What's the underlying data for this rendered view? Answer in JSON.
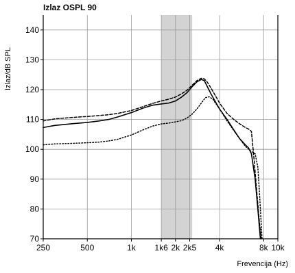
{
  "chart_data": {
    "type": "line",
    "title": "Izlaz OSPL 90",
    "ylabel": "Izlaz/dB SPL",
    "xlabel": "Frevencija (Hz)",
    "x_scale": "log",
    "xlim": [
      250,
      10000
    ],
    "ylim": [
      70,
      145
    ],
    "yticks": [
      70,
      80,
      90,
      100,
      110,
      120,
      130,
      140
    ],
    "xticks": [
      {
        "value": 250,
        "label": "250"
      },
      {
        "value": 500,
        "label": "500"
      },
      {
        "value": 1000,
        "label": "1k"
      },
      {
        "value": 1600,
        "label": "1k6"
      },
      {
        "value": 2000,
        "label": "2k"
      },
      {
        "value": 2500,
        "label": "2k5"
      },
      {
        "value": 4000,
        "label": "4k"
      },
      {
        "value": 8000,
        "label": "8k"
      },
      {
        "value": 10000,
        "label": "10k"
      }
    ],
    "grid": true,
    "shaded_band": {
      "x_from": 1600,
      "x_to": 2600,
      "color": "#d3d3d3"
    },
    "series": [
      {
        "style": "solid",
        "color": "#000000",
        "x": [
          250,
          300,
          400,
          500,
          600,
          700,
          800,
          1000,
          1200,
          1400,
          1600,
          1800,
          2000,
          2200,
          2400,
          2600,
          2800,
          3000,
          3150,
          3300,
          3500,
          4000,
          4500,
          5000,
          5500,
          6000,
          6300,
          6600,
          7000,
          7300,
          7600
        ],
        "y": [
          107.3,
          108.0,
          108.6,
          109.0,
          109.5,
          110.0,
          110.8,
          112.3,
          113.8,
          114.8,
          115.2,
          115.5,
          116.2,
          117.5,
          119.0,
          121.0,
          122.6,
          123.4,
          123.0,
          121.0,
          118.5,
          113.5,
          110.0,
          106.5,
          103.5,
          101.5,
          100.5,
          98.5,
          90.0,
          80.0,
          70.0
        ]
      },
      {
        "style": "dashed",
        "color": "#000000",
        "x": [
          250,
          300,
          400,
          500,
          600,
          700,
          800,
          1000,
          1200,
          1400,
          1600,
          1800,
          2000,
          2200,
          2400,
          2600,
          2800,
          3000,
          3150,
          3300,
          3500,
          4000,
          4500,
          5000,
          5500,
          6000,
          6300,
          6600,
          6900,
          7200,
          7500,
          7700
        ],
        "y": [
          109.5,
          110.2,
          110.7,
          111.0,
          111.3,
          111.6,
          112.0,
          113.0,
          114.3,
          115.4,
          116.2,
          116.8,
          117.5,
          118.6,
          119.8,
          121.5,
          123.0,
          123.8,
          123.6,
          122.5,
          120.5,
          115.5,
          112.0,
          110.0,
          108.5,
          107.3,
          106.8,
          106.0,
          96.0,
          85.0,
          75.0,
          70.0
        ]
      },
      {
        "style": "dotted",
        "color": "#000000",
        "x": [
          250,
          300,
          400,
          500,
          600,
          700,
          800,
          1000,
          1200,
          1400,
          1600,
          1800,
          2000,
          2200,
          2400,
          2600,
          2800,
          3000,
          3200,
          3400,
          3600,
          4000,
          4500,
          5000,
          5500,
          6000,
          6500,
          7000,
          7300,
          7500,
          7800
        ],
        "y": [
          101.5,
          101.8,
          102.0,
          102.2,
          102.4,
          102.8,
          103.3,
          104.8,
          106.5,
          107.8,
          108.5,
          108.8,
          109.2,
          109.6,
          110.5,
          111.8,
          113.5,
          115.5,
          117.3,
          117.6,
          116.8,
          113.5,
          109.5,
          106.3,
          103.5,
          101.0,
          99.5,
          98.5,
          94.0,
          85.0,
          70.0
        ]
      }
    ]
  }
}
